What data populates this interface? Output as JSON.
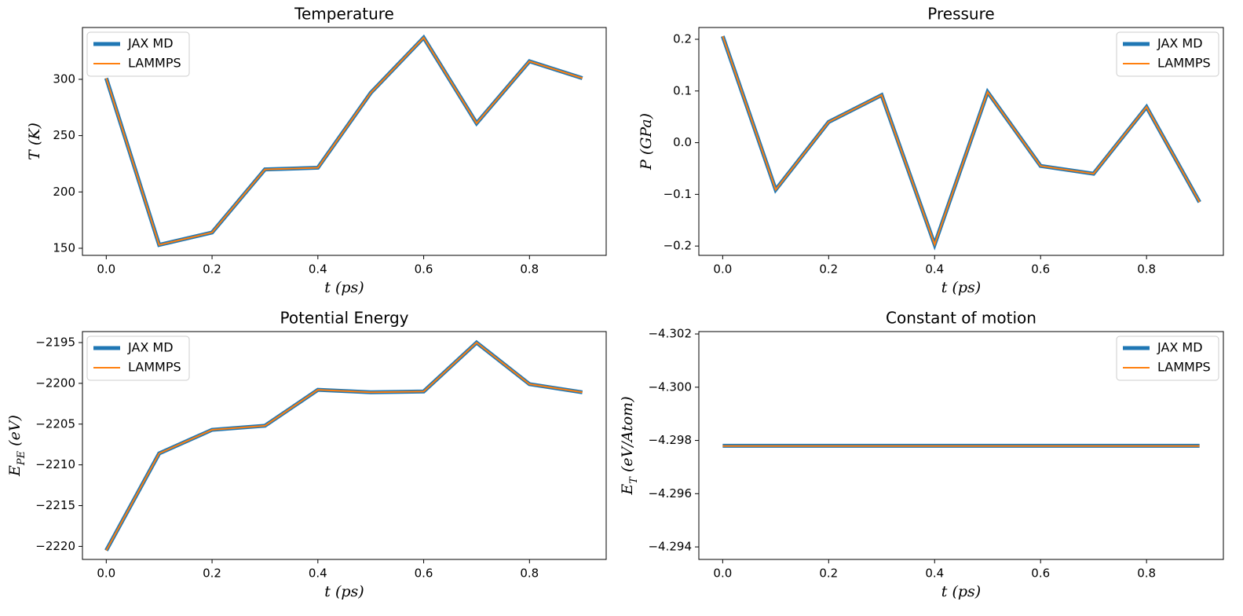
{
  "chart_data": [
    {
      "type": "line",
      "title": "Temperature",
      "xlabel": "t (ps)",
      "ylabel": [
        {
          "text": "T (K)"
        }
      ],
      "x": [
        0.0,
        0.1,
        0.2,
        0.3,
        0.4,
        0.5,
        0.6,
        0.7,
        0.8,
        0.9
      ],
      "series": [
        {
          "name": "JAX MD",
          "color": "#1f77b4",
          "linewidth": 5,
          "values": [
            301,
            153,
            164,
            220,
            221.5,
            288,
            337,
            261,
            316,
            301
          ]
        },
        {
          "name": "LAMMPS",
          "color": "#ff7f0e",
          "linewidth": 2,
          "values": [
            301,
            153,
            164,
            220,
            221.5,
            288,
            337,
            261,
            316,
            301
          ]
        }
      ],
      "xlim": [
        -0.045,
        0.945
      ],
      "ylim": [
        143.7,
        346
      ],
      "xticks": [
        {
          "value": 0,
          "label": "0.0"
        },
        0.2,
        0.4,
        0.6,
        0.8
      ],
      "yticks": [
        150,
        200,
        250,
        300
      ],
      "legend": "upper left"
    },
    {
      "type": "line",
      "title": "Pressure",
      "xlabel": "t (ps)",
      "ylabel": [
        {
          "text": "P (GPa)"
        }
      ],
      "x": [
        0.0,
        0.1,
        0.2,
        0.3,
        0.4,
        0.5,
        0.6,
        0.7,
        0.8,
        0.9
      ],
      "series": [
        {
          "name": "JAX MD",
          "color": "#1f77b4",
          "linewidth": 5,
          "values": [
            0.206,
            -0.091,
            0.04,
            0.092,
            -0.197,
            0.098,
            -0.045,
            -0.06,
            0.069,
            -0.115
          ]
        },
        {
          "name": "LAMMPS",
          "color": "#ff7f0e",
          "linewidth": 2,
          "values": [
            0.206,
            -0.091,
            0.04,
            0.092,
            -0.197,
            0.098,
            -0.045,
            -0.06,
            0.069,
            -0.115
          ]
        }
      ],
      "xlim": [
        -0.045,
        0.945
      ],
      "ylim": [
        -0.218,
        0.2228
      ],
      "xticks": [
        {
          "value": 0,
          "label": "0.0"
        },
        0.2,
        0.4,
        0.6,
        0.8
      ],
      "yticks": [
        {
          "value": -0.2,
          "label": "−0.2"
        },
        {
          "value": -0.1,
          "label": "−0.1"
        },
        {
          "value": 0,
          "label": "0.0"
        },
        0.1,
        0.2
      ],
      "legend": "upper right"
    },
    {
      "type": "line",
      "title": "Potential Energy",
      "xlabel": "t (ps)",
      "ylabel": [
        {
          "text": "E"
        },
        {
          "text": "PE",
          "sub": true
        },
        {
          "text": " (eV)"
        }
      ],
      "x": [
        0.0,
        0.1,
        0.2,
        0.3,
        0.4,
        0.5,
        0.6,
        0.7,
        0.8,
        0.9
      ],
      "series": [
        {
          "name": "JAX MD",
          "color": "#1f77b4",
          "linewidth": 5,
          "values": [
            -2220.5,
            -2208.6,
            -2205.7,
            -2205.2,
            -2200.8,
            -2201.1,
            -2201.0,
            -2195.0,
            -2200.1,
            -2201.1
          ]
        },
        {
          "name": "LAMMPS",
          "color": "#ff7f0e",
          "linewidth": 2,
          "values": [
            -2220.5,
            -2208.6,
            -2205.7,
            -2205.2,
            -2200.8,
            -2201.1,
            -2201.0,
            -2195.0,
            -2200.1,
            -2201.1
          ]
        }
      ],
      "xlim": [
        -0.045,
        0.945
      ],
      "ylim": [
        -2221.6,
        -2193.65
      ],
      "xticks": [
        {
          "value": 0,
          "label": "0.0"
        },
        0.2,
        0.4,
        0.6,
        0.8
      ],
      "yticks": [
        {
          "value": -2220,
          "label": "−2220"
        },
        {
          "value": -2215,
          "label": "−2215"
        },
        {
          "value": -2210,
          "label": "−2210"
        },
        {
          "value": -2205,
          "label": "−2205"
        },
        {
          "value": -2200,
          "label": "−2200"
        },
        {
          "value": -2195,
          "label": "−2195"
        }
      ],
      "legend": "upper left"
    },
    {
      "type": "line",
      "title": "Constant of motion",
      "xlabel": "t (ps)",
      "ylabel": [
        {
          "text": "E"
        },
        {
          "text": "T",
          "sub": true
        },
        {
          "text": " (eV/Atom)"
        }
      ],
      "x": [
        0.0,
        0.1,
        0.2,
        0.3,
        0.4,
        0.5,
        0.6,
        0.7,
        0.8,
        0.9
      ],
      "series": [
        {
          "name": "JAX MD",
          "color": "#1f77b4",
          "linewidth": 5,
          "values": [
            -4.2978,
            -4.2978,
            -4.2978,
            -4.2978,
            -4.2978,
            -4.2978,
            -4.2978,
            -4.2978,
            -4.2978,
            -4.2978
          ]
        },
        {
          "name": "LAMMPS",
          "color": "#ff7f0e",
          "linewidth": 2,
          "values": [
            -4.29779,
            -4.29779,
            -4.29779,
            -4.29779,
            -4.29779,
            -4.29779,
            -4.29779,
            -4.29779,
            -4.29779,
            -4.29779
          ]
        }
      ],
      "xlim": [
        -0.045,
        0.945
      ],
      "ylim": [
        -4.29353,
        -4.30209
      ],
      "xticks": [
        {
          "value": 0,
          "label": "0.0"
        },
        0.2,
        0.4,
        0.6,
        0.8
      ],
      "yticks": [
        {
          "value": -4.302,
          "label": "−4.302"
        },
        {
          "value": -4.3,
          "label": "−4.300"
        },
        {
          "value": -4.298,
          "label": "−4.298"
        },
        {
          "value": -4.296,
          "label": "−4.296"
        },
        {
          "value": -4.294,
          "label": "−4.294"
        }
      ],
      "legend": "upper right"
    }
  ]
}
